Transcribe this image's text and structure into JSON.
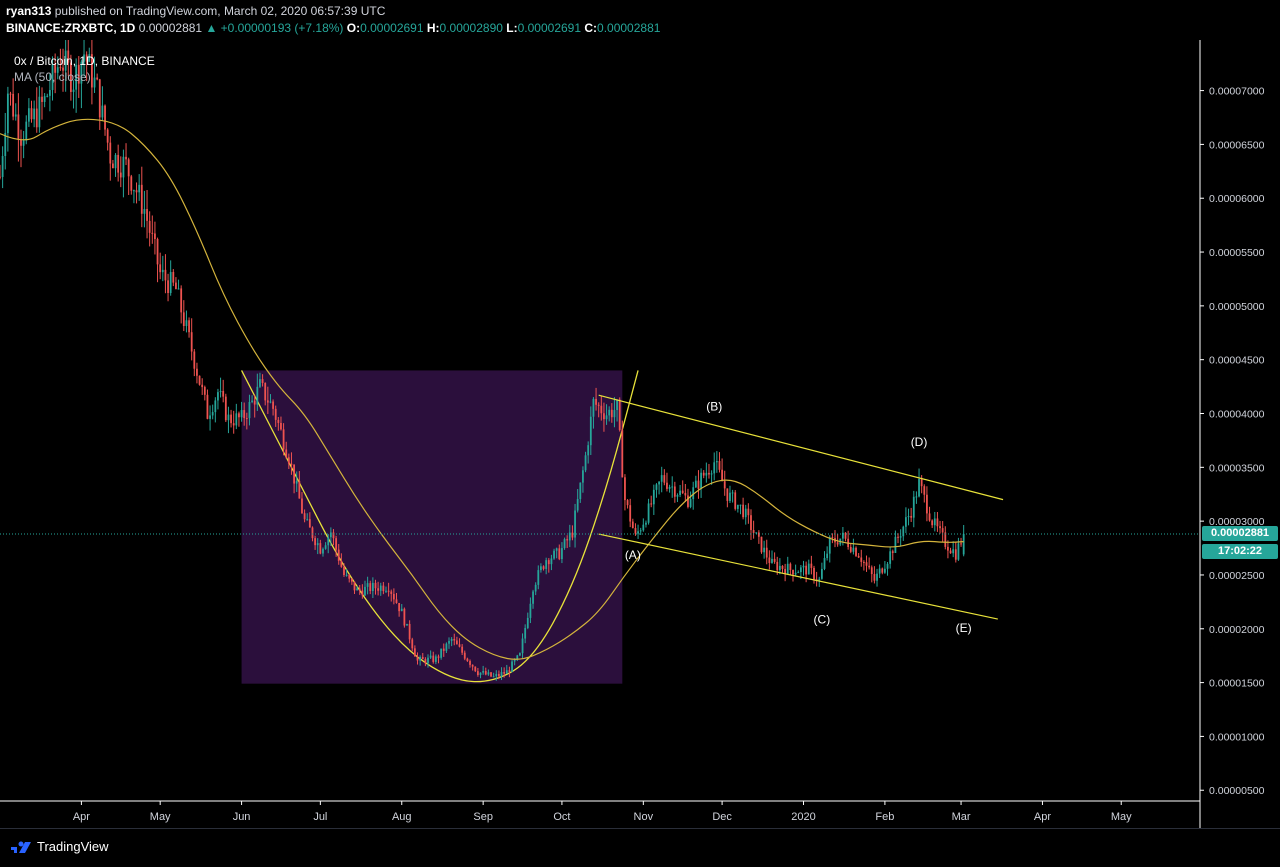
{
  "header": {
    "author": "ryan313",
    "published_text": "published on TradingView.com, March 02, 2020 06:57:39 UTC",
    "symbol": "BINANCE:ZRXBTC, 1D",
    "last": "0.00002881",
    "change": "▲ +0.00000193 (+7.18%)",
    "o_label": "O:",
    "o": "0.00002691",
    "h_label": "H:",
    "h": "0.00002890",
    "l_label": "L:",
    "l": "0.00002691",
    "c_label": "C:",
    "c": "0.00002881"
  },
  "legend": {
    "title": "0x / Bitcoin, 1D, BINANCE",
    "indicator": "MA (50, close)"
  },
  "badges": {
    "price": "0.00002881",
    "countdown": "17:02:22"
  },
  "footer": {
    "brand": "TradingView"
  },
  "colors": {
    "up": "#26a69a",
    "down": "#ef5350",
    "ma": "#d4b43c",
    "trend": "#e8e23a",
    "cup_fill": "#2b0f3c",
    "price_line": "#26a69a"
  },
  "chart_data": {
    "type": "candlestick",
    "title": "0x / Bitcoin, 1D, BINANCE",
    "y_tick_labels": [
      "0.00007000",
      "0.00006500",
      "0.00006000",
      "0.00005500",
      "0.00005000",
      "0.00004500",
      "0.00004000",
      "0.00003500",
      "0.00003000",
      "0.00002500",
      "0.00002000",
      "0.00001500",
      "0.00001000",
      "0.00000500"
    ],
    "y_ticks": [
      7e-05,
      6.5e-05,
      6e-05,
      5.5e-05,
      5e-05,
      4.5e-05,
      4e-05,
      3.5e-05,
      3e-05,
      2.5e-05,
      2e-05,
      1.5e-05,
      1e-05,
      5e-06
    ],
    "ylim": [
      4e-06,
      7.47e-05
    ],
    "xlim": [
      "2019-03-01",
      "2020-05-31"
    ],
    "x_ticks": [
      {
        "date": "2019-04-01",
        "label": "Apr"
      },
      {
        "date": "2019-05-01",
        "label": "May"
      },
      {
        "date": "2019-06-01",
        "label": "Jun"
      },
      {
        "date": "2019-07-01",
        "label": "Jul"
      },
      {
        "date": "2019-08-01",
        "label": "Aug"
      },
      {
        "date": "2019-09-01",
        "label": "Sep"
      },
      {
        "date": "2019-10-01",
        "label": "Oct"
      },
      {
        "date": "2019-11-01",
        "label": "Nov"
      },
      {
        "date": "2019-12-01",
        "label": "Dec"
      },
      {
        "date": "2020-01-01",
        "label": "2020"
      },
      {
        "date": "2020-02-01",
        "label": "Feb"
      },
      {
        "date": "2020-03-01",
        "label": "Mar"
      },
      {
        "date": "2020-04-01",
        "label": "Apr"
      },
      {
        "date": "2020-05-01",
        "label": "May"
      }
    ],
    "close_path": [
      [
        "2019-03-01",
        6.2e-05
      ],
      [
        "2019-03-04",
        7e-05
      ],
      [
        "2019-03-09",
        6.6e-05
      ],
      [
        "2019-03-14",
        6.75e-05
      ],
      [
        "2019-03-18",
        6.9e-05
      ],
      [
        "2019-03-24",
        7.3e-05
      ],
      [
        "2019-03-29",
        7.1e-05
      ],
      [
        "2019-04-02",
        7.35e-05
      ],
      [
        "2019-04-07",
        7e-05
      ],
      [
        "2019-04-12",
        6.4e-05
      ],
      [
        "2019-04-18",
        6.3e-05
      ],
      [
        "2019-04-25",
        5.9e-05
      ],
      [
        "2019-05-01",
        5.3e-05
      ],
      [
        "2019-05-07",
        5.15e-05
      ],
      [
        "2019-05-14",
        4.5e-05
      ],
      [
        "2019-05-19",
        4e-05
      ],
      [
        "2019-05-23",
        4.2e-05
      ],
      [
        "2019-05-27",
        3.95e-05
      ],
      [
        "2019-06-01",
        3.95e-05
      ],
      [
        "2019-06-05",
        4.1e-05
      ],
      [
        "2019-06-08",
        4.25e-05
      ],
      [
        "2019-06-13",
        4.05e-05
      ],
      [
        "2019-06-19",
        3.6e-05
      ],
      [
        "2019-06-25",
        3e-05
      ],
      [
        "2019-07-01",
        2.75e-05
      ],
      [
        "2019-07-05",
        2.9e-05
      ],
      [
        "2019-07-10",
        2.5e-05
      ],
      [
        "2019-07-15",
        2.35e-05
      ],
      [
        "2019-07-20",
        2.38e-05
      ],
      [
        "2019-07-27",
        2.4e-05
      ],
      [
        "2019-08-01",
        2.15e-05
      ],
      [
        "2019-08-07",
        1.7e-05
      ],
      [
        "2019-08-14",
        1.72e-05
      ],
      [
        "2019-08-20",
        1.9e-05
      ],
      [
        "2019-08-25",
        1.75e-05
      ],
      [
        "2019-08-30",
        1.6e-05
      ],
      [
        "2019-09-05",
        1.55e-05
      ],
      [
        "2019-09-10",
        1.6e-05
      ],
      [
        "2019-09-15",
        1.75e-05
      ],
      [
        "2019-09-20",
        2.4e-05
      ],
      [
        "2019-09-25",
        2.65e-05
      ],
      [
        "2019-09-30",
        2.7e-05
      ],
      [
        "2019-10-05",
        2.9e-05
      ],
      [
        "2019-10-10",
        3.6e-05
      ],
      [
        "2019-10-13",
        4.1e-05
      ],
      [
        "2019-10-18",
        4e-05
      ],
      [
        "2019-10-22",
        4.05e-05
      ],
      [
        "2019-10-25",
        3.2e-05
      ],
      [
        "2019-10-29",
        2.85e-05
      ],
      [
        "2019-11-03",
        3.1e-05
      ],
      [
        "2019-11-08",
        3.4e-05
      ],
      [
        "2019-11-13",
        3.3e-05
      ],
      [
        "2019-11-18",
        3.2e-05
      ],
      [
        "2019-11-23",
        3.4e-05
      ],
      [
        "2019-11-28",
        3.55e-05
      ],
      [
        "2019-12-03",
        3.25e-05
      ],
      [
        "2019-12-09",
        3.1e-05
      ],
      [
        "2019-12-15",
        2.8e-05
      ],
      [
        "2019-12-20",
        2.6e-05
      ],
      [
        "2019-12-27",
        2.55e-05
      ],
      [
        "2020-01-03",
        2.55e-05
      ],
      [
        "2020-01-07",
        2.45e-05
      ],
      [
        "2020-01-11",
        2.8e-05
      ],
      [
        "2020-01-16",
        2.85e-05
      ],
      [
        "2020-01-22",
        2.7e-05
      ],
      [
        "2020-01-28",
        2.45e-05
      ],
      [
        "2020-02-02",
        2.65e-05
      ],
      [
        "2020-02-07",
        2.9e-05
      ],
      [
        "2020-02-11",
        3.1e-05
      ],
      [
        "2020-02-14",
        3.35e-05
      ],
      [
        "2020-02-19",
        3e-05
      ],
      [
        "2020-02-24",
        2.8e-05
      ],
      [
        "2020-02-28",
        2.7e-05
      ],
      [
        "2020-03-02",
        2.88e-05
      ]
    ],
    "ma_path": [
      [
        "2019-03-01",
        6.6e-05
      ],
      [
        "2019-03-10",
        6.5e-05
      ],
      [
        "2019-03-20",
        6.65e-05
      ],
      [
        "2019-04-01",
        6.75e-05
      ],
      [
        "2019-04-15",
        6.7e-05
      ],
      [
        "2019-04-25",
        6.5e-05
      ],
      [
        "2019-05-05",
        6.2e-05
      ],
      [
        "2019-05-15",
        5.7e-05
      ],
      [
        "2019-05-25",
        5.1e-05
      ],
      [
        "2019-06-05",
        4.6e-05
      ],
      [
        "2019-06-15",
        4.25e-05
      ],
      [
        "2019-06-25",
        4e-05
      ],
      [
        "2019-07-05",
        3.6e-05
      ],
      [
        "2019-07-15",
        3.2e-05
      ],
      [
        "2019-07-25",
        2.85e-05
      ],
      [
        "2019-08-05",
        2.5e-05
      ],
      [
        "2019-08-15",
        2.15e-05
      ],
      [
        "2019-08-25",
        1.9e-05
      ],
      [
        "2019-09-05",
        1.75e-05
      ],
      [
        "2019-09-15",
        1.7e-05
      ],
      [
        "2019-09-25",
        1.8e-05
      ],
      [
        "2019-10-05",
        1.95e-05
      ],
      [
        "2019-10-15",
        2.15e-05
      ],
      [
        "2019-10-25",
        2.5e-05
      ],
      [
        "2019-11-05",
        2.85e-05
      ],
      [
        "2019-11-15",
        3.15e-05
      ],
      [
        "2019-11-25",
        3.35e-05
      ],
      [
        "2019-12-05",
        3.4e-05
      ],
      [
        "2019-12-15",
        3.25e-05
      ],
      [
        "2019-12-25",
        3.05e-05
      ],
      [
        "2020-01-05",
        2.9e-05
      ],
      [
        "2020-01-15",
        2.8e-05
      ],
      [
        "2020-01-25",
        2.78e-05
      ],
      [
        "2020-02-05",
        2.75e-05
      ],
      [
        "2020-02-15",
        2.82e-05
      ],
      [
        "2020-02-25",
        2.8e-05
      ],
      [
        "2020-03-02",
        2.81e-05
      ]
    ],
    "current_price": 2.881e-05,
    "cup_box": {
      "x0": "2019-06-01",
      "x1": "2019-10-24",
      "y0": 1.49e-05,
      "y1": 4.4e-05
    },
    "cup_curve": [
      [
        "2019-06-01",
        4.4e-05
      ],
      [
        "2019-06-20",
        3.5e-05
      ],
      [
        "2019-07-10",
        2.55e-05
      ],
      [
        "2019-07-31",
        1.85e-05
      ],
      [
        "2019-08-20",
        1.52e-05
      ],
      [
        "2019-09-05",
        1.5e-05
      ],
      [
        "2019-09-20",
        1.72e-05
      ],
      [
        "2019-10-05",
        2.38e-05
      ],
      [
        "2019-10-18",
        3.3e-05
      ],
      [
        "2019-10-30",
        4.4e-05
      ]
    ],
    "channel_upper": [
      [
        "2019-10-15",
        4.17e-05
      ],
      [
        "2020-03-17",
        3.2e-05
      ]
    ],
    "channel_lower": [
      [
        "2019-10-15",
        2.88e-05
      ],
      [
        "2020-03-15",
        2.09e-05
      ]
    ],
    "annotations": [
      {
        "text": "(A)",
        "date": "2019-10-28",
        "value": 2.65e-05
      },
      {
        "text": "(B)",
        "date": "2019-11-28",
        "value": 4.03e-05
      },
      {
        "text": "(C)",
        "date": "2020-01-08",
        "value": 2.05e-05
      },
      {
        "text": "(D)",
        "date": "2020-02-14",
        "value": 3.7e-05
      },
      {
        "text": "(E)",
        "date": "2020-03-02",
        "value": 1.97e-05
      }
    ]
  }
}
